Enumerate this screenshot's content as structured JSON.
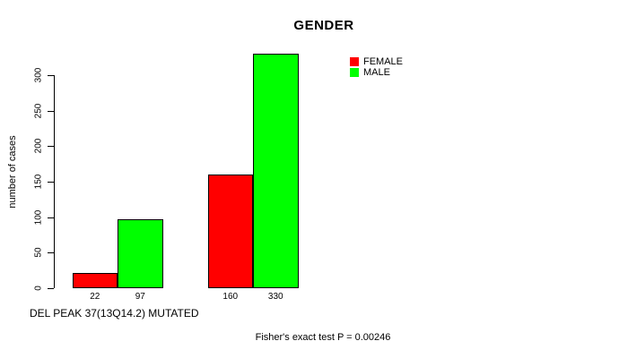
{
  "chart_data": {
    "type": "bar",
    "title": "GENDER",
    "ylabel": "number of cases",
    "xlabel": "DEL PEAK 37(13Q14.2) MUTATED",
    "annotation": "Fisher's exact test P = 0.00246",
    "series": [
      {
        "name": "FEMALE",
        "color": "#FF0000",
        "values": [
          22,
          160
        ]
      },
      {
        "name": "MALE",
        "color": "#00FF00",
        "values": [
          97,
          330
        ]
      }
    ],
    "bar_value_labels": [
      [
        "22",
        "97"
      ],
      [
        "160",
        "330"
      ]
    ],
    "yticks": [
      0,
      50,
      100,
      150,
      200,
      250,
      300
    ],
    "ylim": [
      0,
      330
    ],
    "grid": false,
    "legend_position": "top-right",
    "background_color": "#FFFFFF",
    "axis_color": "#000000"
  }
}
